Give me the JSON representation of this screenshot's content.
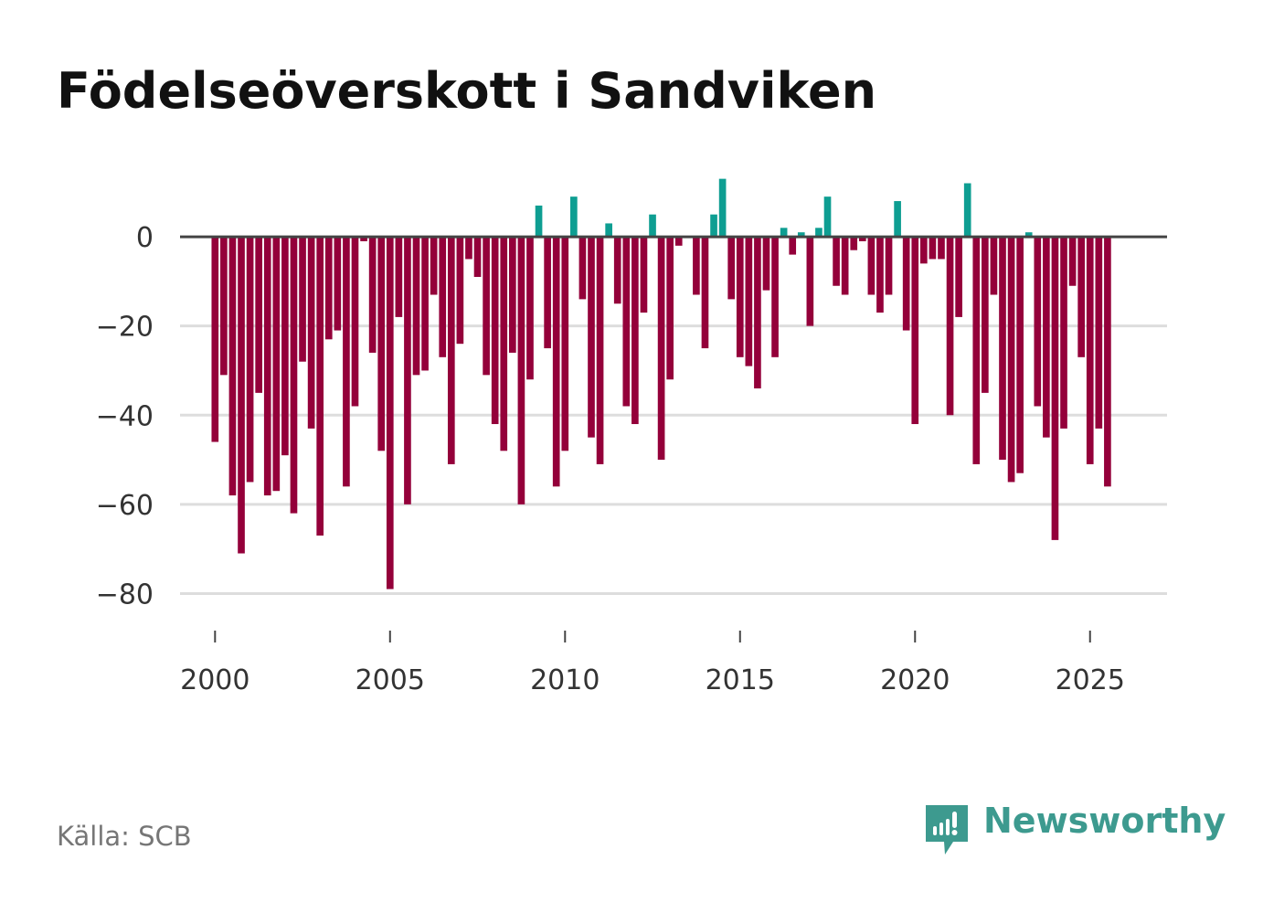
{
  "title": "Födelseöverskott i Sandviken",
  "source": "Källa: SCB",
  "brand": {
    "name": "Newsworthy",
    "icon": "newsworthy-logo-icon"
  },
  "colors": {
    "positive": "#0e9e92",
    "negative": "#94003a",
    "zero_line": "#444444",
    "grid": "#dddddd",
    "brand": "#3d9a8f"
  },
  "chart_data": {
    "type": "bar",
    "title": "Födelseöverskott i Sandviken",
    "xlabel": "",
    "ylabel": "",
    "x_start": 2000,
    "x_step": 0.25,
    "xlim": [
      1999.0,
      2027.2
    ],
    "ylim": [
      -92,
      16
    ],
    "y_ticks": [
      0,
      -20,
      -40,
      -60,
      -80
    ],
    "y_tick_labels": [
      "0",
      "−20",
      "−40",
      "−60",
      "−80"
    ],
    "x_ticks": [
      2000,
      2005,
      2010,
      2015,
      2020,
      2025
    ],
    "x_tick_labels": [
      "2000",
      "2005",
      "2010",
      "2015",
      "2020",
      "2025"
    ],
    "grid": true,
    "values": [
      -46,
      -31,
      -58,
      -71,
      -55,
      -35,
      -58,
      -57,
      -49,
      -62,
      -28,
      -43,
      -67,
      -23,
      -21,
      -56,
      -38,
      -1,
      -26,
      -48,
      -79,
      -18,
      -60,
      -31,
      -30,
      -13,
      -27,
      -51,
      -24,
      -5,
      -9,
      -31,
      -42,
      -48,
      -26,
      -60,
      -32,
      7,
      -25,
      -56,
      -48,
      9,
      -14,
      -45,
      -51,
      3,
      -15,
      -38,
      -42,
      -17,
      5,
      -50,
      -32,
      -2,
      0,
      -13,
      -25,
      5,
      13,
      -14,
      -27,
      -29,
      -34,
      -12,
      -27,
      2,
      -4,
      1,
      -20,
      2,
      9,
      -11,
      -13,
      -3,
      -1,
      -13,
      -17,
      -13,
      8,
      -21,
      -42,
      -6,
      -5,
      -5,
      -40,
      -18,
      12,
      -51,
      -35,
      -13,
      -50,
      -55,
      -53,
      1,
      -38,
      -45,
      -68,
      -43,
      -11,
      -27,
      -51,
      -43,
      -56
    ]
  }
}
